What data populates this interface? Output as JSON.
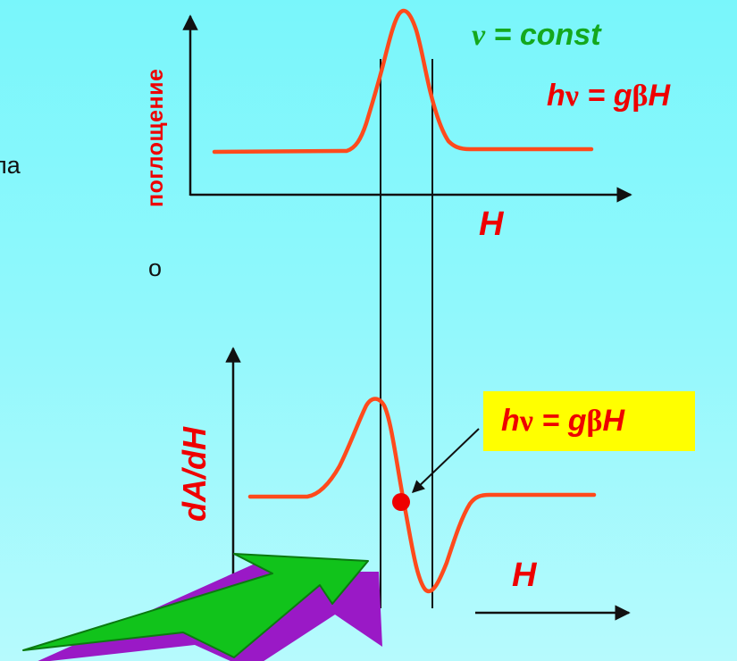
{
  "side_text": [
    "ла",
    "о"
  ],
  "top_panel": {
    "y_label": "поглощение",
    "x_label": "H",
    "constant_label": {
      "symbol": "ν",
      "rest": " = const"
    },
    "resonance_label": {
      "h": "h",
      "nu": "ν",
      "mid": " = g",
      "beta": "β",
      "end": "H"
    }
  },
  "bottom_panel": {
    "y_label": "dA/dH",
    "x_label": "H",
    "resonance_label": {
      "h": "h",
      "nu": "ν",
      "mid": " = g",
      "beta": "β",
      "end": "H"
    }
  },
  "colors": {
    "background": "#8ff8fc",
    "curve": "#ff4a1c",
    "label_red": "#ee0000",
    "label_green": "#14a81e",
    "highlight_box": "#ffff00",
    "arrow_fill": "#11c31b",
    "arrow_shadow": "#9a19c6",
    "axis": "#111111"
  },
  "icons": {
    "pointer_arrow": "big-green-arrow-icon",
    "resonance_point": "red-dot-icon"
  }
}
